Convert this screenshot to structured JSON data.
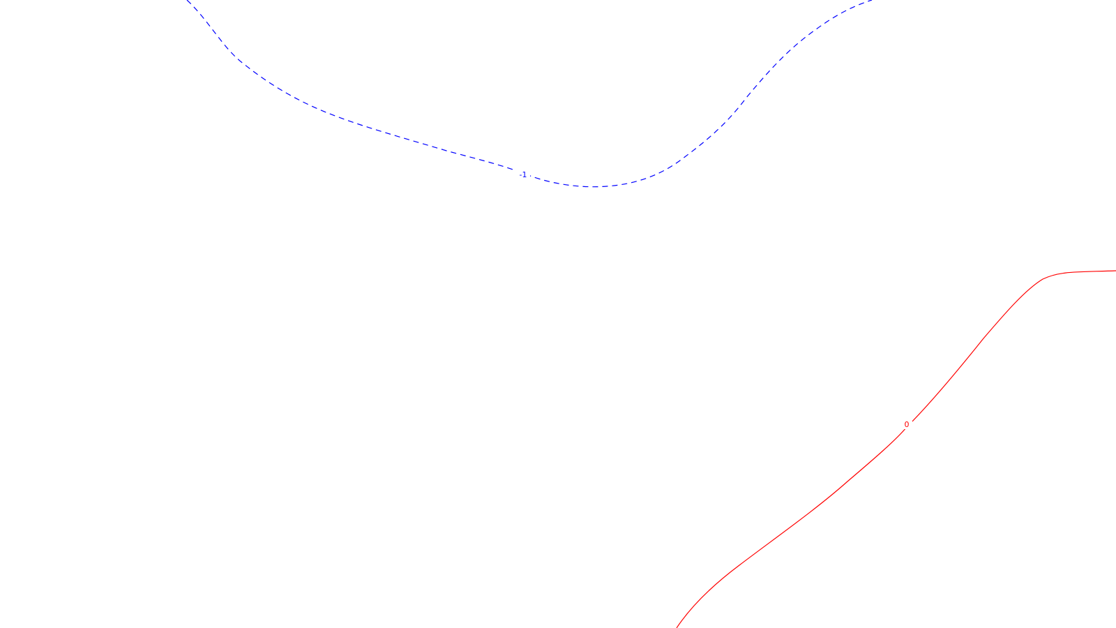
{
  "chart_data": {
    "type": "contour",
    "title": "",
    "xlabel": "",
    "ylabel": "",
    "grid": false,
    "legend": "none",
    "levels": [
      {
        "level": -1,
        "label": "-1",
        "color": "#0000ff",
        "line_style": "dashed"
      },
      {
        "level": 0,
        "label": "0",
        "color": "#ff0000",
        "line_style": "solid"
      }
    ]
  }
}
